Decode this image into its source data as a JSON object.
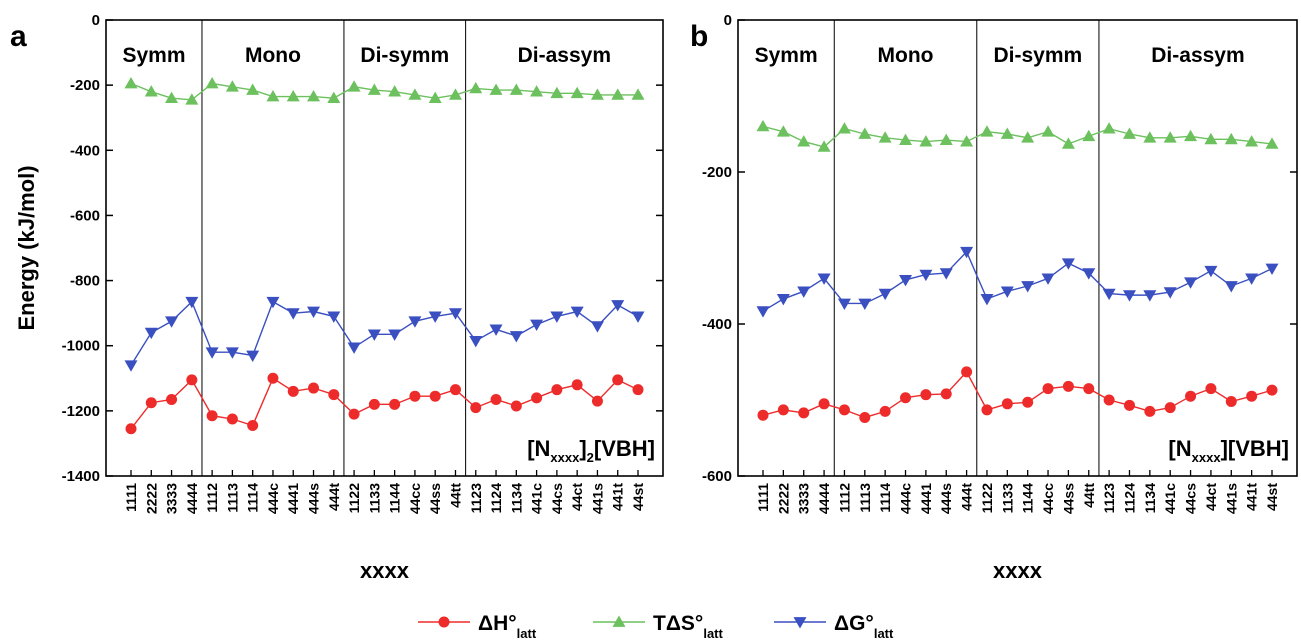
{
  "chart_data": [
    {
      "panel": "a",
      "type": "line",
      "ylabel": "Energy (kJ/mol)",
      "xlabel": "xxxx",
      "ylim": [
        -1400,
        0
      ],
      "yticks": [
        "0",
        "-200",
        "-400",
        "-600",
        "-800",
        "-1000",
        "-1200",
        "-1400"
      ],
      "categories": [
        "1111",
        "2222",
        "3333",
        "4444",
        "1112",
        "1113",
        "1114",
        "444c",
        "4441",
        "444s",
        "444t",
        "1122",
        "1133",
        "1144",
        "44cc",
        "44ss",
        "44tt",
        "1123",
        "1124",
        "1134",
        "441c",
        "44cs",
        "44ct",
        "441s",
        "441t",
        "44st"
      ],
      "groups": [
        {
          "label": "Symm",
          "start": 0,
          "end": 3
        },
        {
          "label": "Mono",
          "start": 4,
          "end": 10
        },
        {
          "label": "Di-symm",
          "start": 11,
          "end": 16
        },
        {
          "label": "Di-assym",
          "start": 17,
          "end": 25
        }
      ],
      "compound": {
        "main": "[N",
        "sub1": "xxxx",
        "mid": "]",
        "sub2": "2",
        "tail": "[VBH]"
      },
      "series": [
        {
          "key": "H",
          "color": "#ee2b2b",
          "marker": "circle",
          "values": [
            -1255,
            -1175,
            -1165,
            -1105,
            -1215,
            -1225,
            -1245,
            -1100,
            -1140,
            -1130,
            -1150,
            -1210,
            -1180,
            -1180,
            -1155,
            -1155,
            -1135,
            -1190,
            -1165,
            -1185,
            -1160,
            -1135,
            -1120,
            -1170,
            -1105,
            -1135
          ]
        },
        {
          "key": "S",
          "color": "#6cc15e",
          "marker": "triangle-up",
          "values": [
            -195,
            -220,
            -240,
            -245,
            -195,
            -205,
            -215,
            -235,
            -235,
            -235,
            -240,
            -205,
            -215,
            -220,
            -230,
            -240,
            -230,
            -210,
            -215,
            -215,
            -220,
            -225,
            -225,
            -230,
            -230,
            -230
          ]
        },
        {
          "key": "G",
          "color": "#3a4fc0",
          "marker": "triangle-down",
          "values": [
            -1060,
            -960,
            -925,
            -865,
            -1020,
            -1020,
            -1030,
            -865,
            -900,
            -895,
            -910,
            -1005,
            -965,
            -965,
            -925,
            -910,
            -900,
            -985,
            -950,
            -970,
            -935,
            -910,
            -895,
            -940,
            -875,
            -910
          ]
        }
      ]
    },
    {
      "panel": "b",
      "type": "line",
      "ylabel": "",
      "xlabel": "xxxx",
      "ylim": [
        -600,
        0
      ],
      "yticks": [
        "0",
        "-200",
        "-400",
        "-600"
      ],
      "categories": [
        "1111",
        "2222",
        "3333",
        "4444",
        "1112",
        "1113",
        "1114",
        "444c",
        "4441",
        "444s",
        "444t",
        "1122",
        "1133",
        "1144",
        "44cc",
        "44ss",
        "44tt",
        "1123",
        "1124",
        "1134",
        "441c",
        "44cs",
        "44ct",
        "441s",
        "441t",
        "44st"
      ],
      "groups": [
        {
          "label": "Symm",
          "start": 0,
          "end": 3
        },
        {
          "label": "Mono",
          "start": 4,
          "end": 10
        },
        {
          "label": "Di-symm",
          "start": 11,
          "end": 16
        },
        {
          "label": "Di-assym",
          "start": 17,
          "end": 25
        }
      ],
      "compound": {
        "main": "[N",
        "sub1": "xxxx",
        "mid": "]",
        "sub2": "",
        "tail": "[VBH]"
      },
      "series": [
        {
          "key": "H",
          "color": "#ee2b2b",
          "marker": "circle",
          "values": [
            -520,
            -513,
            -517,
            -505,
            -513,
            -523,
            -515,
            -497,
            -493,
            -492,
            -463,
            -513,
            -505,
            -503,
            -485,
            -482,
            -485,
            -500,
            -507,
            -515,
            -510,
            -495,
            -485,
            -502,
            -495,
            -487
          ]
        },
        {
          "key": "S",
          "color": "#6cc15e",
          "marker": "triangle-up",
          "values": [
            -140,
            -147,
            -160,
            -167,
            -143,
            -150,
            -155,
            -158,
            -160,
            -158,
            -160,
            -147,
            -150,
            -155,
            -147,
            -163,
            -153,
            -143,
            -150,
            -155,
            -155,
            -153,
            -157,
            -157,
            -160,
            -163
          ]
        },
        {
          "key": "G",
          "color": "#3a4fc0",
          "marker": "triangle-down",
          "values": [
            -383,
            -367,
            -357,
            -340,
            -373,
            -373,
            -360,
            -342,
            -335,
            -333,
            -305,
            -367,
            -357,
            -350,
            -340,
            -320,
            -333,
            -360,
            -362,
            -362,
            -358,
            -345,
            -330,
            -350,
            -340,
            -327
          ]
        }
      ]
    }
  ],
  "legend": {
    "placement": "bottom-center",
    "items": [
      {
        "key": "H",
        "main": "ΔH°",
        "sub": "latt",
        "color": "#ee2b2b",
        "marker": "circle"
      },
      {
        "key": "S",
        "main": "TΔS°",
        "sub": "latt",
        "color": "#6cc15e",
        "marker": "triangle-up"
      },
      {
        "key": "G",
        "main": "ΔG°",
        "sub": "latt",
        "color": "#3a4fc0",
        "marker": "triangle-down"
      }
    ]
  }
}
